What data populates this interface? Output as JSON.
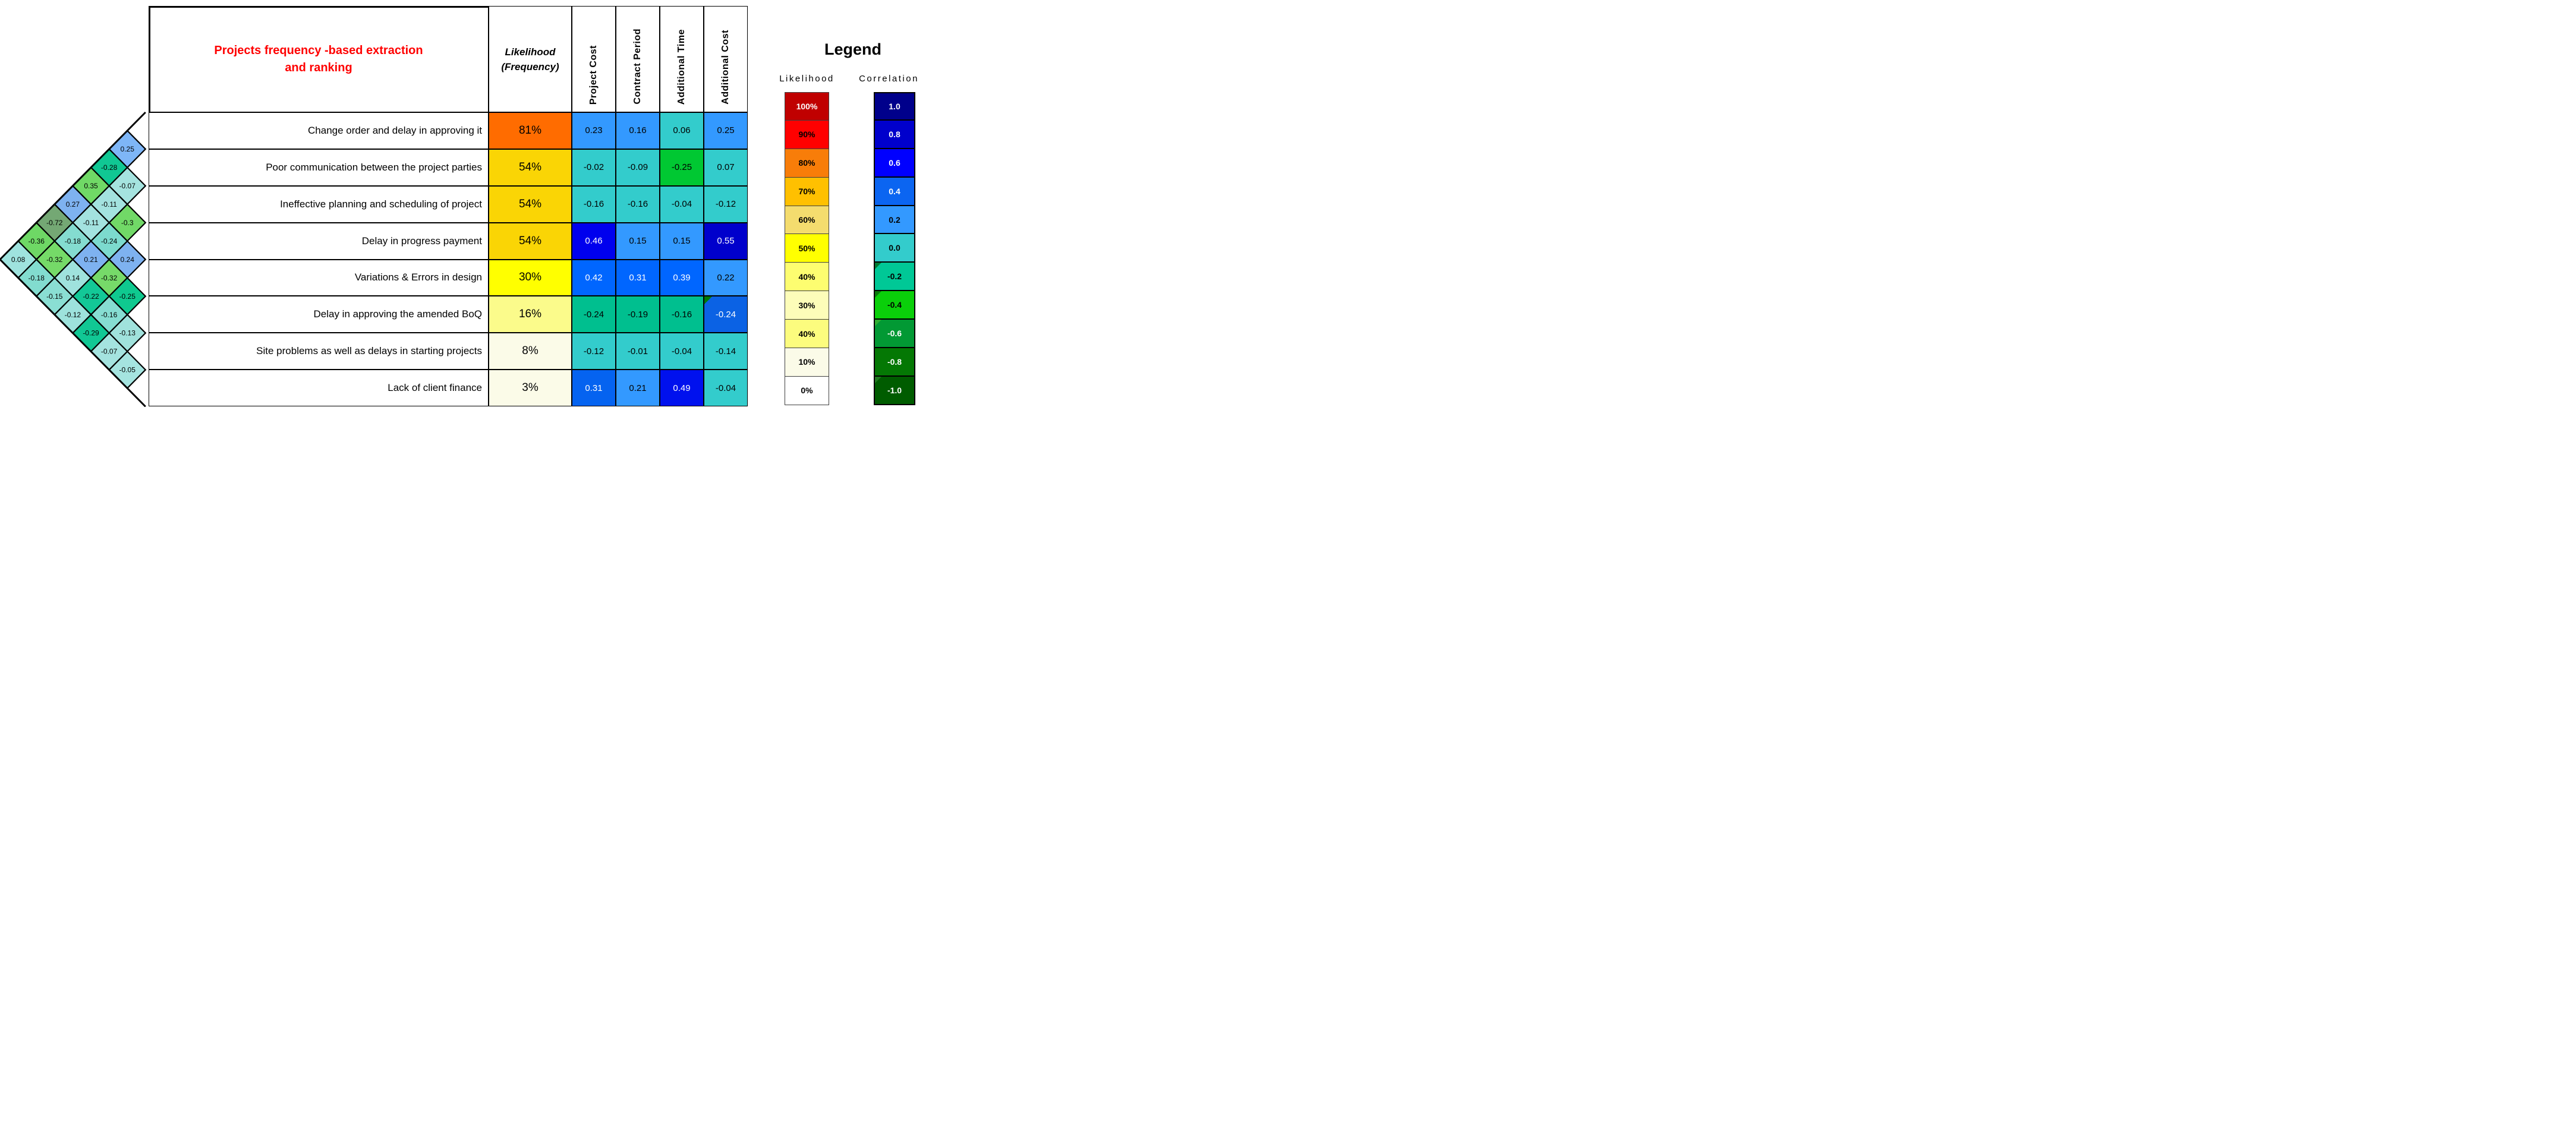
{
  "title": {
    "line1": "Projects frequency -based extraction",
    "line2": "and ranking",
    "color": "#FF0000"
  },
  "table": {
    "likelihood_header_line1": "Likelihood",
    "likelihood_header_line2": "(Frequency)",
    "impact_columns": [
      "Project Cost",
      "Contract Period",
      "Additional Time",
      "Additional Cost"
    ],
    "rows": [
      {
        "risk": "Change order and delay in approving it",
        "likelihood": "81%",
        "likelihood_bg": "#FF6C00",
        "cells": [
          {
            "v": "0.23",
            "bg": "#3399FF",
            "fg": "#000000"
          },
          {
            "v": "0.16",
            "bg": "#3399FF",
            "fg": "#000000"
          },
          {
            "v": "0.06",
            "bg": "#33CCCC",
            "fg": "#000000"
          },
          {
            "v": "0.25",
            "bg": "#3399FF",
            "fg": "#000000"
          }
        ]
      },
      {
        "risk": "Poor communication between the project parties",
        "likelihood": "54%",
        "likelihood_bg": "#FAD505",
        "cells": [
          {
            "v": "-0.02",
            "bg": "#33CCCC",
            "fg": "#000000"
          },
          {
            "v": "-0.09",
            "bg": "#33CCCC",
            "fg": "#000000"
          },
          {
            "v": "-0.25",
            "bg": "#00C832",
            "fg": "#000000"
          },
          {
            "v": "0.07",
            "bg": "#33CCCC",
            "fg": "#000000"
          }
        ]
      },
      {
        "risk": "Ineffective planning and scheduling of project",
        "likelihood": "54%",
        "likelihood_bg": "#FAD505",
        "cells": [
          {
            "v": "-0.16",
            "bg": "#33CCCC",
            "fg": "#000000"
          },
          {
            "v": "-0.16",
            "bg": "#33CCCC",
            "fg": "#000000"
          },
          {
            "v": "-0.04",
            "bg": "#33CCCC",
            "fg": "#000000"
          },
          {
            "v": "-0.12",
            "bg": "#33CCCC",
            "fg": "#000000"
          }
        ]
      },
      {
        "risk": "Delay in progress payment",
        "likelihood": "54%",
        "likelihood_bg": "#FAD505",
        "cells": [
          {
            "v": "0.46",
            "bg": "#0000EE",
            "fg": "#FFFFFF"
          },
          {
            "v": "0.15",
            "bg": "#3399FF",
            "fg": "#000000"
          },
          {
            "v": "0.15",
            "bg": "#3399FF",
            "fg": "#000000"
          },
          {
            "v": "0.55",
            "bg": "#0000CC",
            "fg": "#FFFFFF"
          }
        ]
      },
      {
        "risk": "Variations & Errors in design",
        "likelihood": "30%",
        "likelihood_bg": "#FFFF00",
        "cells": [
          {
            "v": "0.42",
            "bg": "#0066FF",
            "fg": "#FFFFFF"
          },
          {
            "v": "0.31",
            "bg": "#0066FF",
            "fg": "#FFFFFF"
          },
          {
            "v": "0.39",
            "bg": "#0066FF",
            "fg": "#FFFFFF"
          },
          {
            "v": "0.22",
            "bg": "#3399FF",
            "fg": "#000000"
          }
        ]
      },
      {
        "risk": "Delay in approving the amended BoQ",
        "likelihood": "16%",
        "likelihood_bg": "#FBFB8B",
        "cells": [
          {
            "v": "-0.24",
            "bg": "#00BF8F",
            "fg": "#000000"
          },
          {
            "v": "-0.19",
            "bg": "#00BF8F",
            "fg": "#000000"
          },
          {
            "v": "-0.16",
            "bg": "#00BF8F",
            "fg": "#000000"
          },
          {
            "v": "-0.24",
            "bg": "#0B62E4",
            "fg": "#FFFFFF",
            "corner": "#007A00"
          }
        ]
      },
      {
        "risk": "Site problems as well as delays in starting projects",
        "likelihood": "8%",
        "likelihood_bg": "#FBFBE8",
        "cells": [
          {
            "v": "-0.12",
            "bg": "#33CCCC",
            "fg": "#000000"
          },
          {
            "v": "-0.01",
            "bg": "#33CCCC",
            "fg": "#000000"
          },
          {
            "v": "-0.04",
            "bg": "#33CCCC",
            "fg": "#000000"
          },
          {
            "v": "-0.14",
            "bg": "#33CCCC",
            "fg": "#000000"
          }
        ]
      },
      {
        "risk": "Lack of client finance",
        "likelihood": "3%",
        "likelihood_bg": "#FBFBE8",
        "cells": [
          {
            "v": "0.31",
            "bg": "#0563F0",
            "fg": "#FFFFFF"
          },
          {
            "v": "0.21",
            "bg": "#3399FF",
            "fg": "#000000"
          },
          {
            "v": "0.49",
            "bg": "#0011EE",
            "fg": "#FFFFFF"
          },
          {
            "v": "-0.04",
            "bg": "#33CCCC",
            "fg": "#000000"
          }
        ]
      }
    ]
  },
  "diamond": {
    "cells": [
      {
        "i": 1,
        "j": 2,
        "v": "0.25",
        "bg": "#7EB6F7"
      },
      {
        "i": 2,
        "j": 3,
        "v": "-0.07",
        "bg": "#A5E3DF"
      },
      {
        "i": 3,
        "j": 4,
        "v": "-0.3",
        "bg": "#71D967"
      },
      {
        "i": 4,
        "j": 5,
        "v": "0.24",
        "bg": "#7EB2F0"
      },
      {
        "i": 5,
        "j": 6,
        "v": "-0.25",
        "bg": "#0FC98F"
      },
      {
        "i": 6,
        "j": 7,
        "v": "-0.13",
        "bg": "#A0E2DC"
      },
      {
        "i": 7,
        "j": 8,
        "v": "-0.05",
        "bg": "#A5E4E0"
      },
      {
        "i": 1,
        "j": 3,
        "v": "-0.28",
        "bg": "#10C793"
      },
      {
        "i": 2,
        "j": 4,
        "v": "-0.11",
        "bg": "#A3E2DF"
      },
      {
        "i": 3,
        "j": 5,
        "v": "-0.24",
        "bg": "#7CDACE"
      },
      {
        "i": 4,
        "j": 6,
        "v": "-0.32",
        "bg": "#76DA69"
      },
      {
        "i": 5,
        "j": 7,
        "v": "-0.16",
        "bg": "#86DDD2"
      },
      {
        "i": 6,
        "j": 8,
        "v": "-0.07",
        "bg": "#A4E3DF"
      },
      {
        "i": 1,
        "j": 4,
        "v": "0.35",
        "bg": "#70D966"
      },
      {
        "i": 2,
        "j": 5,
        "v": "-0.11",
        "bg": "#A3E2DF"
      },
      {
        "i": 3,
        "j": 6,
        "v": "0.21",
        "bg": "#7EB2F0"
      },
      {
        "i": 4,
        "j": 7,
        "v": "-0.22",
        "bg": "#13C897"
      },
      {
        "i": 5,
        "j": 8,
        "v": "-0.29",
        "bg": "#11C794"
      },
      {
        "i": 1,
        "j": 5,
        "v": "0.27",
        "bg": "#7EB2F0"
      },
      {
        "i": 2,
        "j": 6,
        "v": "-0.18",
        "bg": "#84DCD0"
      },
      {
        "i": 3,
        "j": 7,
        "v": "0.14",
        "bg": "#9FE2DD"
      },
      {
        "i": 4,
        "j": 8,
        "v": "-0.12",
        "bg": "#9DE2DC"
      },
      {
        "i": 1,
        "j": 6,
        "v": "-0.72",
        "bg": "#74A874"
      },
      {
        "i": 2,
        "j": 7,
        "v": "-0.32",
        "bg": "#75DA68"
      },
      {
        "i": 3,
        "j": 8,
        "v": "-0.15",
        "bg": "#8ADED3"
      },
      {
        "i": 1,
        "j": 7,
        "v": "-0.36",
        "bg": "#6ED865"
      },
      {
        "i": 2,
        "j": 8,
        "v": "-0.18",
        "bg": "#82DCCF"
      },
      {
        "i": 1,
        "j": 8,
        "v": "0.08",
        "bg": "#9FE3DE"
      }
    ]
  },
  "legend": {
    "title": "Legend",
    "likelihood_label": "Likelihood",
    "correlation_label": "Correlation",
    "likelihood_scale": [
      {
        "label": "100%",
        "bg": "#C00000",
        "fg": "#FFFFFF"
      },
      {
        "label": "90%",
        "bg": "#FF0000",
        "fg": "#000000"
      },
      {
        "label": "80%",
        "bg": "#F87D09",
        "fg": "#000000"
      },
      {
        "label": "70%",
        "bg": "#FFC000",
        "fg": "#000000"
      },
      {
        "label": "60%",
        "bg": "#F4DC6E",
        "fg": "#000000"
      },
      {
        "label": "50%",
        "bg": "#FFFF00",
        "fg": "#000000"
      },
      {
        "label": "40%",
        "bg": "#FDFD70",
        "fg": "#000000"
      },
      {
        "label": "30%",
        "bg": "#FDFDB9",
        "fg": "#000000"
      },
      {
        "label": "40%",
        "bg": "#FCFC7E",
        "fg": "#000000"
      },
      {
        "label": "10%",
        "bg": "#FBFBE8",
        "fg": "#000000"
      },
      {
        "label": "0%",
        "bg": "#FFFFFF",
        "fg": "#000000"
      }
    ],
    "correlation_scale": [
      {
        "label": "1.0",
        "bg": "#00008B",
        "fg": "#FFFFFF"
      },
      {
        "label": "0.8",
        "bg": "#0000CC",
        "fg": "#FFFFFF"
      },
      {
        "label": "0.6",
        "bg": "#0000FF",
        "fg": "#FFFFFF"
      },
      {
        "label": "0.4",
        "bg": "#0B65F1",
        "fg": "#FFFFFF"
      },
      {
        "label": "0.2",
        "bg": "#3399FF",
        "fg": "#000000"
      },
      {
        "label": "0.0",
        "bg": "#33CCCC",
        "fg": "#000000"
      },
      {
        "label": "-0.2",
        "bg": "#00C896",
        "fg": "#000000",
        "corner": "#007A33"
      },
      {
        "label": "-0.4",
        "bg": "#0ACF0A",
        "fg": "#000000",
        "corner": "#0A7A0A"
      },
      {
        "label": "-0.6",
        "bg": "#029934",
        "fg": "#FFFFFF",
        "corner": "#31AD31"
      },
      {
        "label": "-0.8",
        "bg": "#047804",
        "fg": "#FFFFFF"
      },
      {
        "label": "-1.0",
        "bg": "#005C00",
        "fg": "#FFFFFF",
        "corner": "#207920"
      }
    ]
  },
  "chart_data": {
    "type": "heatmap",
    "title": "Projects frequency -based extraction and ranking",
    "rows": [
      "Change order and delay in approving it",
      "Poor communication between the project parties",
      "Ineffective planning and scheduling of project",
      "Delay in progress payment",
      "Variations & Errors in design",
      "Delay in approving the amended BoQ",
      "Site problems as well as delays in starting projects",
      "Lack of client finance"
    ],
    "likelihood_percent": [
      81,
      54,
      54,
      54,
      30,
      16,
      8,
      3
    ],
    "impact_columns": [
      "Project Cost",
      "Contract Period",
      "Additional Time",
      "Additional Cost"
    ],
    "correlations": [
      [
        0.23,
        0.16,
        0.06,
        0.25
      ],
      [
        -0.02,
        -0.09,
        -0.25,
        0.07
      ],
      [
        -0.16,
        -0.16,
        -0.04,
        -0.12
      ],
      [
        0.46,
        0.15,
        0.15,
        0.55
      ],
      [
        0.42,
        0.31,
        0.39,
        0.22
      ],
      [
        -0.24,
        -0.19,
        -0.16,
        -0.24
      ],
      [
        -0.12,
        -0.01,
        -0.04,
        -0.14
      ],
      [
        0.31,
        0.21,
        0.49,
        -0.04
      ]
    ],
    "pairwise_risk_correlations": [
      {
        "pair": [
          1,
          2
        ],
        "r": 0.25
      },
      {
        "pair": [
          1,
          3
        ],
        "r": -0.28
      },
      {
        "pair": [
          1,
          4
        ],
        "r": 0.35
      },
      {
        "pair": [
          1,
          5
        ],
        "r": 0.27
      },
      {
        "pair": [
          1,
          6
        ],
        "r": -0.72
      },
      {
        "pair": [
          1,
          7
        ],
        "r": -0.36
      },
      {
        "pair": [
          1,
          8
        ],
        "r": 0.08
      },
      {
        "pair": [
          2,
          3
        ],
        "r": -0.07
      },
      {
        "pair": [
          2,
          4
        ],
        "r": -0.11
      },
      {
        "pair": [
          2,
          5
        ],
        "r": -0.11
      },
      {
        "pair": [
          2,
          6
        ],
        "r": -0.18
      },
      {
        "pair": [
          2,
          7
        ],
        "r": -0.32
      },
      {
        "pair": [
          2,
          8
        ],
        "r": -0.18
      },
      {
        "pair": [
          3,
          4
        ],
        "r": -0.3
      },
      {
        "pair": [
          3,
          5
        ],
        "r": -0.24
      },
      {
        "pair": [
          3,
          6
        ],
        "r": 0.21
      },
      {
        "pair": [
          3,
          7
        ],
        "r": 0.14
      },
      {
        "pair": [
          3,
          8
        ],
        "r": -0.15
      },
      {
        "pair": [
          4,
          5
        ],
        "r": 0.24
      },
      {
        "pair": [
          4,
          6
        ],
        "r": -0.32
      },
      {
        "pair": [
          4,
          7
        ],
        "r": -0.22
      },
      {
        "pair": [
          4,
          8
        ],
        "r": -0.12
      },
      {
        "pair": [
          5,
          6
        ],
        "r": -0.25
      },
      {
        "pair": [
          5,
          7
        ],
        "r": -0.16
      },
      {
        "pair": [
          5,
          8
        ],
        "r": -0.29
      },
      {
        "pair": [
          6,
          7
        ],
        "r": -0.13
      },
      {
        "pair": [
          6,
          8
        ],
        "r": -0.07
      },
      {
        "pair": [
          7,
          8
        ],
        "r": -0.05
      }
    ],
    "legend": {
      "likelihood_levels": [
        "100%",
        "90%",
        "80%",
        "70%",
        "60%",
        "50%",
        "40%",
        "30%",
        "40%",
        "10%",
        "0%"
      ],
      "correlation_levels": [
        1.0,
        0.8,
        0.6,
        0.4,
        0.2,
        0.0,
        -0.2,
        -0.4,
        -0.6,
        -0.8,
        -1.0
      ],
      "legend_position": "right"
    }
  }
}
